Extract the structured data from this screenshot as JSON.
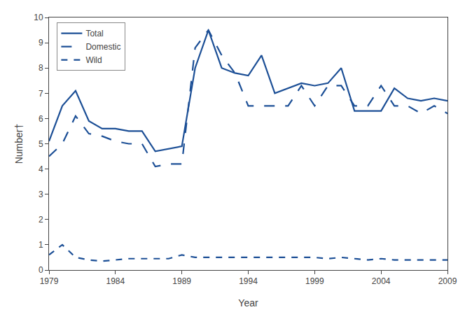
{
  "chart_data": {
    "type": "line",
    "x_label": "Year",
    "y_label": "Number†",
    "x": [
      1979,
      1980,
      1981,
      1982,
      1983,
      1984,
      1985,
      1986,
      1987,
      1988,
      1989,
      1990,
      1991,
      1992,
      1993,
      1994,
      1995,
      1996,
      1997,
      1998,
      1999,
      2000,
      2001,
      2002,
      2003,
      2004,
      2005,
      2006,
      2007,
      2008,
      2009
    ],
    "series": [
      {
        "name": "Total",
        "color": "#1c4f96",
        "line_style": "solid",
        "values": [
          5.1,
          6.5,
          7.1,
          5.9,
          5.6,
          5.6,
          5.5,
          5.5,
          4.7,
          4.8,
          4.9,
          8.0,
          9.5,
          8.0,
          7.8,
          7.7,
          8.5,
          7.0,
          7.2,
          7.4,
          7.3,
          7.4,
          8.0,
          6.3,
          6.3,
          6.3,
          7.2,
          6.8,
          6.7,
          6.8,
          6.7
        ]
      },
      {
        "name": "Domestic",
        "color": "#1c4f96",
        "line_style": "longdash",
        "values": [
          4.5,
          5.0,
          6.1,
          5.4,
          5.3,
          5.1,
          5.0,
          5.0,
          4.1,
          4.2,
          4.2,
          8.8,
          9.5,
          8.5,
          7.8,
          6.5,
          6.5,
          6.5,
          6.5,
          7.3,
          6.5,
          7.3,
          7.3,
          6.5,
          6.5,
          7.3,
          6.5,
          6.5,
          6.2,
          6.5,
          6.2
        ]
      },
      {
        "name": "Wild",
        "color": "#1c4f96",
        "line_style": "dash",
        "values": [
          0.6,
          1.0,
          0.5,
          0.4,
          0.35,
          0.4,
          0.45,
          0.45,
          0.45,
          0.45,
          0.6,
          0.5,
          0.5,
          0.5,
          0.5,
          0.5,
          0.5,
          0.5,
          0.5,
          0.5,
          0.5,
          0.45,
          0.5,
          0.45,
          0.4,
          0.45,
          0.4,
          0.4,
          0.4,
          0.4,
          0.4
        ]
      }
    ],
    "xlim": [
      1979,
      2009
    ],
    "xticks": [
      1979,
      1984,
      1989,
      1994,
      1999,
      2004,
      2009
    ],
    "ylim": [
      0,
      10
    ],
    "yticks": [
      0,
      1,
      2,
      3,
      4,
      5,
      6,
      7,
      8,
      9,
      10
    ],
    "grid": false,
    "legend": "upper left"
  }
}
